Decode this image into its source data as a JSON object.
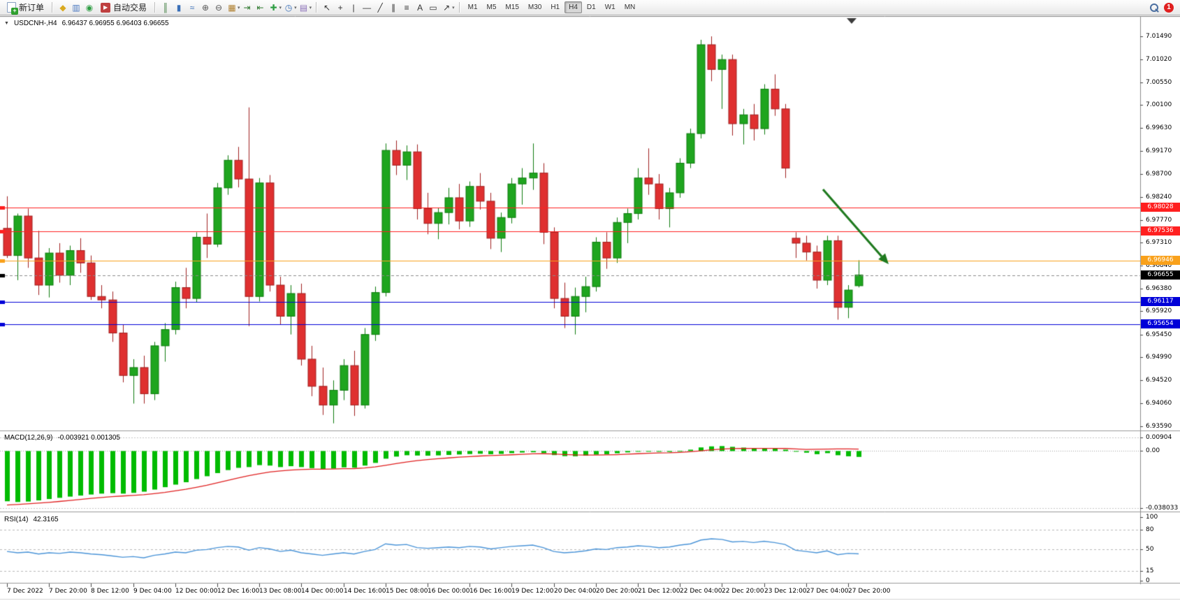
{
  "toolbar": {
    "new_order": {
      "label": "新订单"
    },
    "auto_trading": {
      "label": "自动交易"
    },
    "notification_badge": "1",
    "icon_groups": {
      "quick": [
        {
          "name": "news-icon",
          "glyph": "◆",
          "color": "#D9A91F"
        },
        {
          "name": "market-watch-icon",
          "glyph": "▥",
          "color": "#4A78C0"
        },
        {
          "name": "support-icon",
          "glyph": "◉",
          "color": "#2F9E44"
        }
      ],
      "chart": [
        {
          "name": "bar-chart-icon",
          "glyph": "║",
          "color": "#3A7A3A"
        },
        {
          "name": "candlestick-chart-icon",
          "glyph": "▮",
          "color": "#3A6FB8"
        },
        {
          "name": "line-chart-icon",
          "glyph": "≈",
          "color": "#3A6FB8"
        },
        {
          "name": "zoom-in-icon",
          "glyph": "⊕",
          "color": "#555555"
        },
        {
          "name": "zoom-out-icon",
          "glyph": "⊖",
          "color": "#555555"
        },
        {
          "name": "tile-windows-icon",
          "glyph": "▦",
          "color": "#B08030",
          "caret": true
        },
        {
          "name": "auto-scroll-icon",
          "glyph": "⇥",
          "color": "#2F7A2F"
        },
        {
          "name": "chart-shift-icon",
          "glyph": "⇤",
          "color": "#2F7A2F"
        },
        {
          "name": "indicators-icon",
          "glyph": "✚",
          "color": "#2F9E44",
          "caret": true
        },
        {
          "name": "periods-icon",
          "glyph": "◷",
          "color": "#3A6FB8",
          "caret": true
        },
        {
          "name": "templates-icon",
          "glyph": "▤",
          "color": "#8A6FB8",
          "caret": true
        }
      ],
      "draw": [
        {
          "name": "cursor-icon",
          "glyph": "↖",
          "color": "#333333"
        },
        {
          "name": "crosshair-icon",
          "glyph": "+",
          "color": "#333333"
        },
        {
          "name": "vertical-line-icon",
          "glyph": "|",
          "color": "#333333"
        },
        {
          "name": "horizontal-line-icon",
          "glyph": "—",
          "color": "#333333"
        },
        {
          "name": "trendline-icon",
          "glyph": "╱",
          "color": "#333333"
        },
        {
          "name": "channel-icon",
          "glyph": "∥",
          "color": "#333333"
        },
        {
          "name": "fibonacci-icon",
          "glyph": "≡",
          "color": "#333333"
        },
        {
          "name": "text-icon",
          "glyph": "A",
          "color": "#333333"
        },
        {
          "name": "label-icon",
          "glyph": "▭",
          "color": "#333333"
        },
        {
          "name": "arrows-icon",
          "glyph": "↗",
          "color": "#333333",
          "caret": true
        }
      ]
    },
    "timeframes": [
      "M1",
      "M5",
      "M15",
      "M30",
      "H1",
      "H4",
      "D1",
      "W1",
      "MN"
    ],
    "active_timeframe": "H4"
  },
  "chart": {
    "symbol_period": "USDCNH-,H4",
    "ohlc_text": "6.96437 6.96955 6.96403 6.96655",
    "price_axis": [
      "7.01490",
      "7.01020",
      "7.00550",
      "7.00100",
      "6.99630",
      "6.99170",
      "6.98700",
      "6.98240",
      "6.97770",
      "6.97310",
      "6.96840",
      "6.96380",
      "6.95920",
      "6.95450",
      "6.94990",
      "6.94520",
      "6.94060",
      "6.93590"
    ],
    "price_lines": [
      {
        "value": 6.98028,
        "label": "6.98028",
        "color": "#FF2020",
        "style": "solid",
        "role": "resistance"
      },
      {
        "value": 6.97536,
        "label": "6.97536",
        "color": "#FF2020",
        "style": "solid",
        "role": "resistance"
      },
      {
        "value": 6.96946,
        "label": "6.96946",
        "color": "#F9A11B",
        "style": "solid",
        "role": "pivot"
      },
      {
        "value": 6.96655,
        "label": "6.96655",
        "color": "#000000",
        "line_color": "#8a8a8a",
        "style": "dashed",
        "role": "current-price"
      },
      {
        "value": 6.96117,
        "label": "6.96117",
        "color": "#0000D8",
        "style": "solid",
        "role": "support"
      },
      {
        "value": 6.95654,
        "label": "6.95654",
        "color": "#0000D8",
        "style": "solid",
        "role": "support"
      }
    ],
    "annotation_arrow": {
      "color": "#1F7A1F",
      "direction": "down-right"
    }
  },
  "macd": {
    "label": "MACD(12,26,9)",
    "values_text": "-0.003921 0.001305",
    "axis": [
      "0.00904",
      "0.00",
      "-0.038033"
    ]
  },
  "rsi": {
    "label": "RSI(14)",
    "value_text": "42.3165",
    "axis": [
      "100",
      "80",
      "50",
      "15",
      "0"
    ]
  },
  "chart_data": [
    {
      "type": "candlestick",
      "title": "USDCNH- H4",
      "ylim": [
        6.9359,
        7.0149
      ],
      "up_color": "#1FA51F",
      "down_color": "#DF3030",
      "x_label_every": 4,
      "x_labels": [
        "7 Dec 2022",
        "7 Dec 20:00",
        "8 Dec 12:00",
        "9 Dec 04:00",
        "12 Dec 00:00",
        "12 Dec 16:00",
        "13 Dec 08:00",
        "14 Dec 00:00",
        "14 Dec 16:00",
        "15 Dec 08:00",
        "16 Dec 00:00",
        "16 Dec 16:00",
        "19 Dec 12:00",
        "20 Dec 04:00",
        "20 Dec 20:00",
        "21 Dec 12:00",
        "22 Dec 04:00",
        "22 Dec 20:00",
        "23 Dec 12:00",
        "27 Dec 04:00",
        "27 Dec 20:00"
      ],
      "ohlc": [
        [
          6.976,
          6.9825,
          6.97,
          6.9705
        ],
        [
          6.9705,
          6.979,
          6.9655,
          6.9785
        ],
        [
          6.9785,
          6.98,
          6.968,
          6.97
        ],
        [
          6.97,
          6.9755,
          6.9625,
          6.9645
        ],
        [
          6.9645,
          6.972,
          6.962,
          6.971
        ],
        [
          6.971,
          6.973,
          6.965,
          6.9665
        ],
        [
          6.9665,
          6.9725,
          6.9645,
          6.9715
        ],
        [
          6.9715,
          6.974,
          6.967,
          6.969
        ],
        [
          6.969,
          6.9705,
          6.9615,
          6.9622
        ],
        [
          6.9622,
          6.9645,
          6.9598,
          6.9615
        ],
        [
          6.9615,
          6.9632,
          6.953,
          6.9548
        ],
        [
          6.9548,
          6.9565,
          6.9448,
          6.9462
        ],
        [
          6.9462,
          6.9495,
          6.9405,
          6.9478
        ],
        [
          6.9478,
          6.9502,
          6.9405,
          6.9425
        ],
        [
          6.9425,
          6.953,
          6.9412,
          6.9522
        ],
        [
          6.9522,
          6.9568,
          6.949,
          6.9555
        ],
        [
          6.9555,
          6.9652,
          6.9545,
          6.964
        ],
        [
          6.964,
          6.968,
          6.9598,
          6.9618
        ],
        [
          6.9618,
          6.9752,
          6.961,
          6.9742
        ],
        [
          6.9742,
          6.979,
          6.97,
          6.9728
        ],
        [
          6.9728,
          6.9852,
          6.9722,
          6.9842
        ],
        [
          6.9842,
          6.9908,
          6.9828,
          6.9898
        ],
        [
          6.9898,
          6.9925,
          6.9843,
          6.986
        ],
        [
          6.986,
          7.0005,
          6.9562,
          6.9622
        ],
        [
          6.9622,
          6.9862,
          6.9612,
          6.9852
        ],
        [
          6.9852,
          6.9868,
          6.9632,
          6.9645
        ],
        [
          6.9645,
          6.9662,
          6.9565,
          6.9582
        ],
        [
          6.9582,
          6.9645,
          6.9545,
          6.9628
        ],
        [
          6.9628,
          6.9648,
          6.9482,
          6.9495
        ],
        [
          6.9495,
          6.9522,
          6.942,
          6.944
        ],
        [
          6.944,
          6.9478,
          6.9382,
          6.9402
        ],
        [
          6.9402,
          6.9452,
          6.9365,
          6.9432
        ],
        [
          6.9432,
          6.9495,
          6.9412,
          6.9482
        ],
        [
          6.9482,
          6.9512,
          6.938,
          6.9402
        ],
        [
          6.9402,
          6.9558,
          6.9395,
          6.9545
        ],
        [
          6.9545,
          6.9642,
          6.9532,
          6.963
        ],
        [
          6.963,
          6.9932,
          6.9622,
          6.9918
        ],
        [
          6.9918,
          6.9938,
          6.9868,
          6.9888
        ],
        [
          6.9888,
          6.9928,
          6.9858,
          6.9915
        ],
        [
          6.9915,
          6.993,
          6.9778,
          6.98
        ],
        [
          6.98,
          6.9832,
          6.9748,
          6.977
        ],
        [
          6.977,
          6.9802,
          6.9738,
          6.9792
        ],
        [
          6.9792,
          6.9842,
          6.9768,
          6.9822
        ],
        [
          6.9822,
          6.985,
          6.9758,
          6.9775
        ],
        [
          6.9775,
          6.9855,
          6.9763,
          6.9845
        ],
        [
          6.9845,
          6.9872,
          6.9798,
          6.9815
        ],
        [
          6.9815,
          6.9832,
          6.9718,
          6.974
        ],
        [
          6.974,
          6.9792,
          6.9712,
          6.9782
        ],
        [
          6.9782,
          6.9862,
          6.977,
          6.985
        ],
        [
          6.985,
          6.9882,
          6.9808,
          6.9862
        ],
        [
          6.9862,
          6.9932,
          6.9838,
          6.9872
        ],
        [
          6.9872,
          6.9892,
          6.9728,
          6.9752
        ],
        [
          6.9752,
          6.9762,
          6.9598,
          6.9618
        ],
        [
          6.9618,
          6.965,
          6.9558,
          6.9582
        ],
        [
          6.9582,
          6.964,
          6.9545,
          6.9622
        ],
        [
          6.9622,
          6.9662,
          6.959,
          6.9642
        ],
        [
          6.9642,
          6.9742,
          6.9632,
          6.9732
        ],
        [
          6.9732,
          6.9752,
          6.9678,
          6.97
        ],
        [
          6.97,
          6.9782,
          6.969,
          6.9772
        ],
        [
          6.9772,
          6.98,
          6.973,
          6.979
        ],
        [
          6.979,
          6.9882,
          6.9778,
          6.9862
        ],
        [
          6.9862,
          6.9922,
          6.9828,
          6.985
        ],
        [
          6.985,
          6.987,
          6.9778,
          6.98
        ],
        [
          6.98,
          6.9842,
          6.9762,
          6.9832
        ],
        [
          6.9832,
          6.9902,
          6.9822,
          6.9892
        ],
        [
          6.9892,
          6.9962,
          6.9882,
          6.9952
        ],
        [
          6.9952,
          7.0142,
          6.9942,
          7.0132
        ],
        [
          7.0132,
          7.0149,
          7.0058,
          7.0082
        ],
        [
          7.0082,
          7.0112,
          7.0002,
          7.0102
        ],
        [
          7.0102,
          7.0112,
          6.9948,
          6.9972
        ],
        [
          6.9972,
          7.0002,
          6.993,
          6.999
        ],
        [
          6.999,
          7.0012,
          6.9938,
          6.9962
        ],
        [
          6.9962,
          7.0052,
          6.995,
          7.0042
        ],
        [
          7.0042,
          7.0072,
          6.9988,
          7.0002
        ],
        [
          7.0002,
          7.0012,
          6.9862,
          6.9882
        ],
        [
          6.974,
          6.9752,
          6.97,
          6.973
        ],
        [
          6.973,
          6.9745,
          6.9695,
          6.9712
        ],
        [
          6.9712,
          6.9725,
          6.9638,
          6.9655
        ],
        [
          6.9655,
          6.9745,
          6.9645,
          6.9735
        ],
        [
          6.9735,
          6.9745,
          6.9575,
          6.96
        ],
        [
          6.96,
          6.9645,
          6.9578,
          6.9635
        ],
        [
          6.96437,
          6.96955,
          6.96403,
          6.96655
        ]
      ]
    },
    {
      "type": "bar",
      "title": "MACD(12,26,9)",
      "ylim": [
        -0.038033,
        0.00904
      ],
      "bar_color": "#00BB00",
      "values": [
        -0.0335,
        -0.034,
        -0.0337,
        -0.0329,
        -0.032,
        -0.0312,
        -0.0304,
        -0.0297,
        -0.029,
        -0.0284,
        -0.0281,
        -0.0284,
        -0.0279,
        -0.0271,
        -0.0257,
        -0.0241,
        -0.0224,
        -0.0208,
        -0.0187,
        -0.0168,
        -0.0147,
        -0.0127,
        -0.0112,
        -0.0107,
        -0.0094,
        -0.0097,
        -0.0107,
        -0.0101,
        -0.0107,
        -0.0114,
        -0.0119,
        -0.0117,
        -0.0109,
        -0.0111,
        -0.0097,
        -0.0079,
        -0.0051,
        -0.0037,
        -0.0028,
        -0.003,
        -0.0031,
        -0.0029,
        -0.0026,
        -0.0023,
        -0.002,
        -0.0018,
        -0.0021,
        -0.0019,
        -0.0014,
        -0.001,
        -0.0008,
        -0.0014,
        -0.0027,
        -0.0034,
        -0.0035,
        -0.0031,
        -0.0024,
        -0.0021,
        -0.0015,
        -0.0009,
        -0.0004,
        -0.0002,
        -0.0005,
        -0.0006,
        0.0001,
        0.0009,
        0.0024,
        0.0031,
        0.0033,
        0.0028,
        0.0023,
        0.0019,
        0.0018,
        0.0017,
        0.0009,
        -0.0004,
        -0.0011,
        -0.0021,
        -0.0014,
        -0.0028,
        -0.0035,
        -0.003921
      ],
      "signal": {
        "name": "signal",
        "color": "#E02020",
        "values": [
          -0.036,
          -0.0356,
          -0.0352,
          -0.0347,
          -0.0342,
          -0.0336,
          -0.033,
          -0.0323,
          -0.0316,
          -0.031,
          -0.0304,
          -0.03,
          -0.0296,
          -0.0291,
          -0.0284,
          -0.0276,
          -0.0266,
          -0.0255,
          -0.0242,
          -0.0228,
          -0.0212,
          -0.0196,
          -0.0179,
          -0.0164,
          -0.0151,
          -0.014,
          -0.0133,
          -0.0127,
          -0.0123,
          -0.0121,
          -0.0121,
          -0.012,
          -0.0118,
          -0.0117,
          -0.0113,
          -0.0106,
          -0.0095,
          -0.0084,
          -0.0073,
          -0.0064,
          -0.0057,
          -0.0051,
          -0.0046,
          -0.0041,
          -0.0037,
          -0.0033,
          -0.003,
          -0.0028,
          -0.0025,
          -0.0022,
          -0.0019,
          -0.0018,
          -0.002,
          -0.0023,
          -0.0026,
          -0.0027,
          -0.0027,
          -0.0026,
          -0.0024,
          -0.0021,
          -0.0018,
          -0.0015,
          -0.0013,
          -0.0012,
          -0.0009,
          -0.0005,
          0.0001,
          0.0008,
          0.0013,
          0.0016,
          0.0017,
          0.0018,
          0.0018,
          0.0018,
          0.0017,
          0.0014,
          0.0011,
          0.0012,
          0.0013,
          0.0014,
          0.0014,
          0.001305
        ]
      }
    },
    {
      "type": "line",
      "title": "RSI(14)",
      "ylim": [
        0,
        100
      ],
      "color": "#4A94D8",
      "levels": [
        80,
        50,
        15
      ],
      "values": [
        46,
        44,
        45,
        42,
        44,
        43,
        45,
        44,
        42,
        41,
        39,
        37,
        38,
        36,
        40,
        42,
        45,
        44,
        48,
        49,
        52,
        54,
        53,
        48,
        52,
        50,
        46,
        48,
        44,
        42,
        40,
        42,
        44,
        42,
        46,
        49,
        58,
        56,
        57,
        52,
        51,
        52,
        53,
        52,
        54,
        53,
        50,
        52,
        54,
        55,
        56,
        52,
        46,
        44,
        45,
        47,
        50,
        49,
        52,
        53,
        55,
        54,
        52,
        53,
        56,
        58,
        64,
        66,
        65,
        61,
        62,
        60,
        62,
        60,
        57,
        48,
        46,
        44,
        47,
        41,
        43,
        42.3165
      ]
    }
  ]
}
